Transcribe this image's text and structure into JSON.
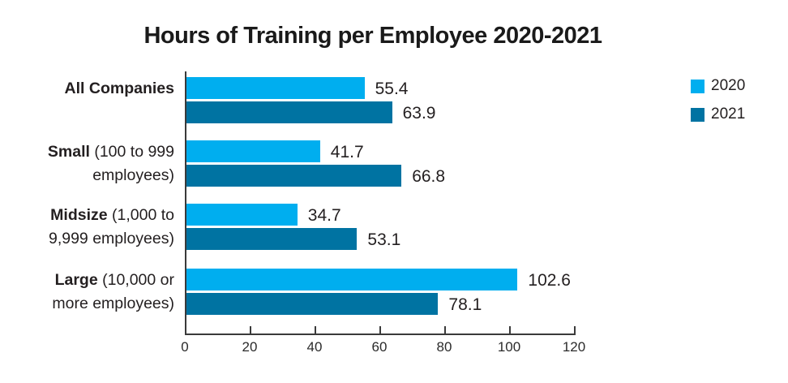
{
  "title": "Hours of Training per Employee 2020-2021",
  "chart_data": {
    "type": "bar",
    "orientation": "horizontal",
    "title": "Hours of Training per Employee 2020-2021",
    "categories": [
      {
        "name": "All Companies",
        "lines": [
          [
            {
              "bold": true,
              "text": "All Companies"
            }
          ]
        ]
      },
      {
        "name": "Small (100 to 999 employees)",
        "lines": [
          [
            {
              "bold": true,
              "text": "Small"
            },
            {
              "bold": false,
              "text": " (100 to 999"
            }
          ],
          [
            {
              "bold": false,
              "text": "employees)"
            }
          ]
        ]
      },
      {
        "name": "Midsize (1,000 to 9,999 employees)",
        "lines": [
          [
            {
              "bold": true,
              "text": "Midsize"
            },
            {
              "bold": false,
              "text": " (1,000 to"
            }
          ],
          [
            {
              "bold": false,
              "text": "9,999 employees)"
            }
          ]
        ]
      },
      {
        "name": "Large (10,000 or more employees)",
        "lines": [
          [
            {
              "bold": true,
              "text": "Large"
            },
            {
              "bold": false,
              "text": " (10,000 or"
            }
          ],
          [
            {
              "bold": false,
              "text": "more employees)"
            }
          ]
        ]
      }
    ],
    "series": [
      {
        "name": "2020",
        "color": "#00AEEF",
        "values": [
          55.4,
          41.7,
          34.7,
          102.6
        ]
      },
      {
        "name": "2021",
        "color": "#0073A2",
        "values": [
          63.9,
          66.8,
          53.1,
          78.1
        ]
      }
    ],
    "xlim": [
      0,
      120
    ],
    "xticks": [
      0,
      20,
      40,
      60,
      80,
      100,
      120
    ],
    "grid": false,
    "value_labels": true,
    "legend_position": "top-right",
    "xlabel": "",
    "ylabel": ""
  }
}
